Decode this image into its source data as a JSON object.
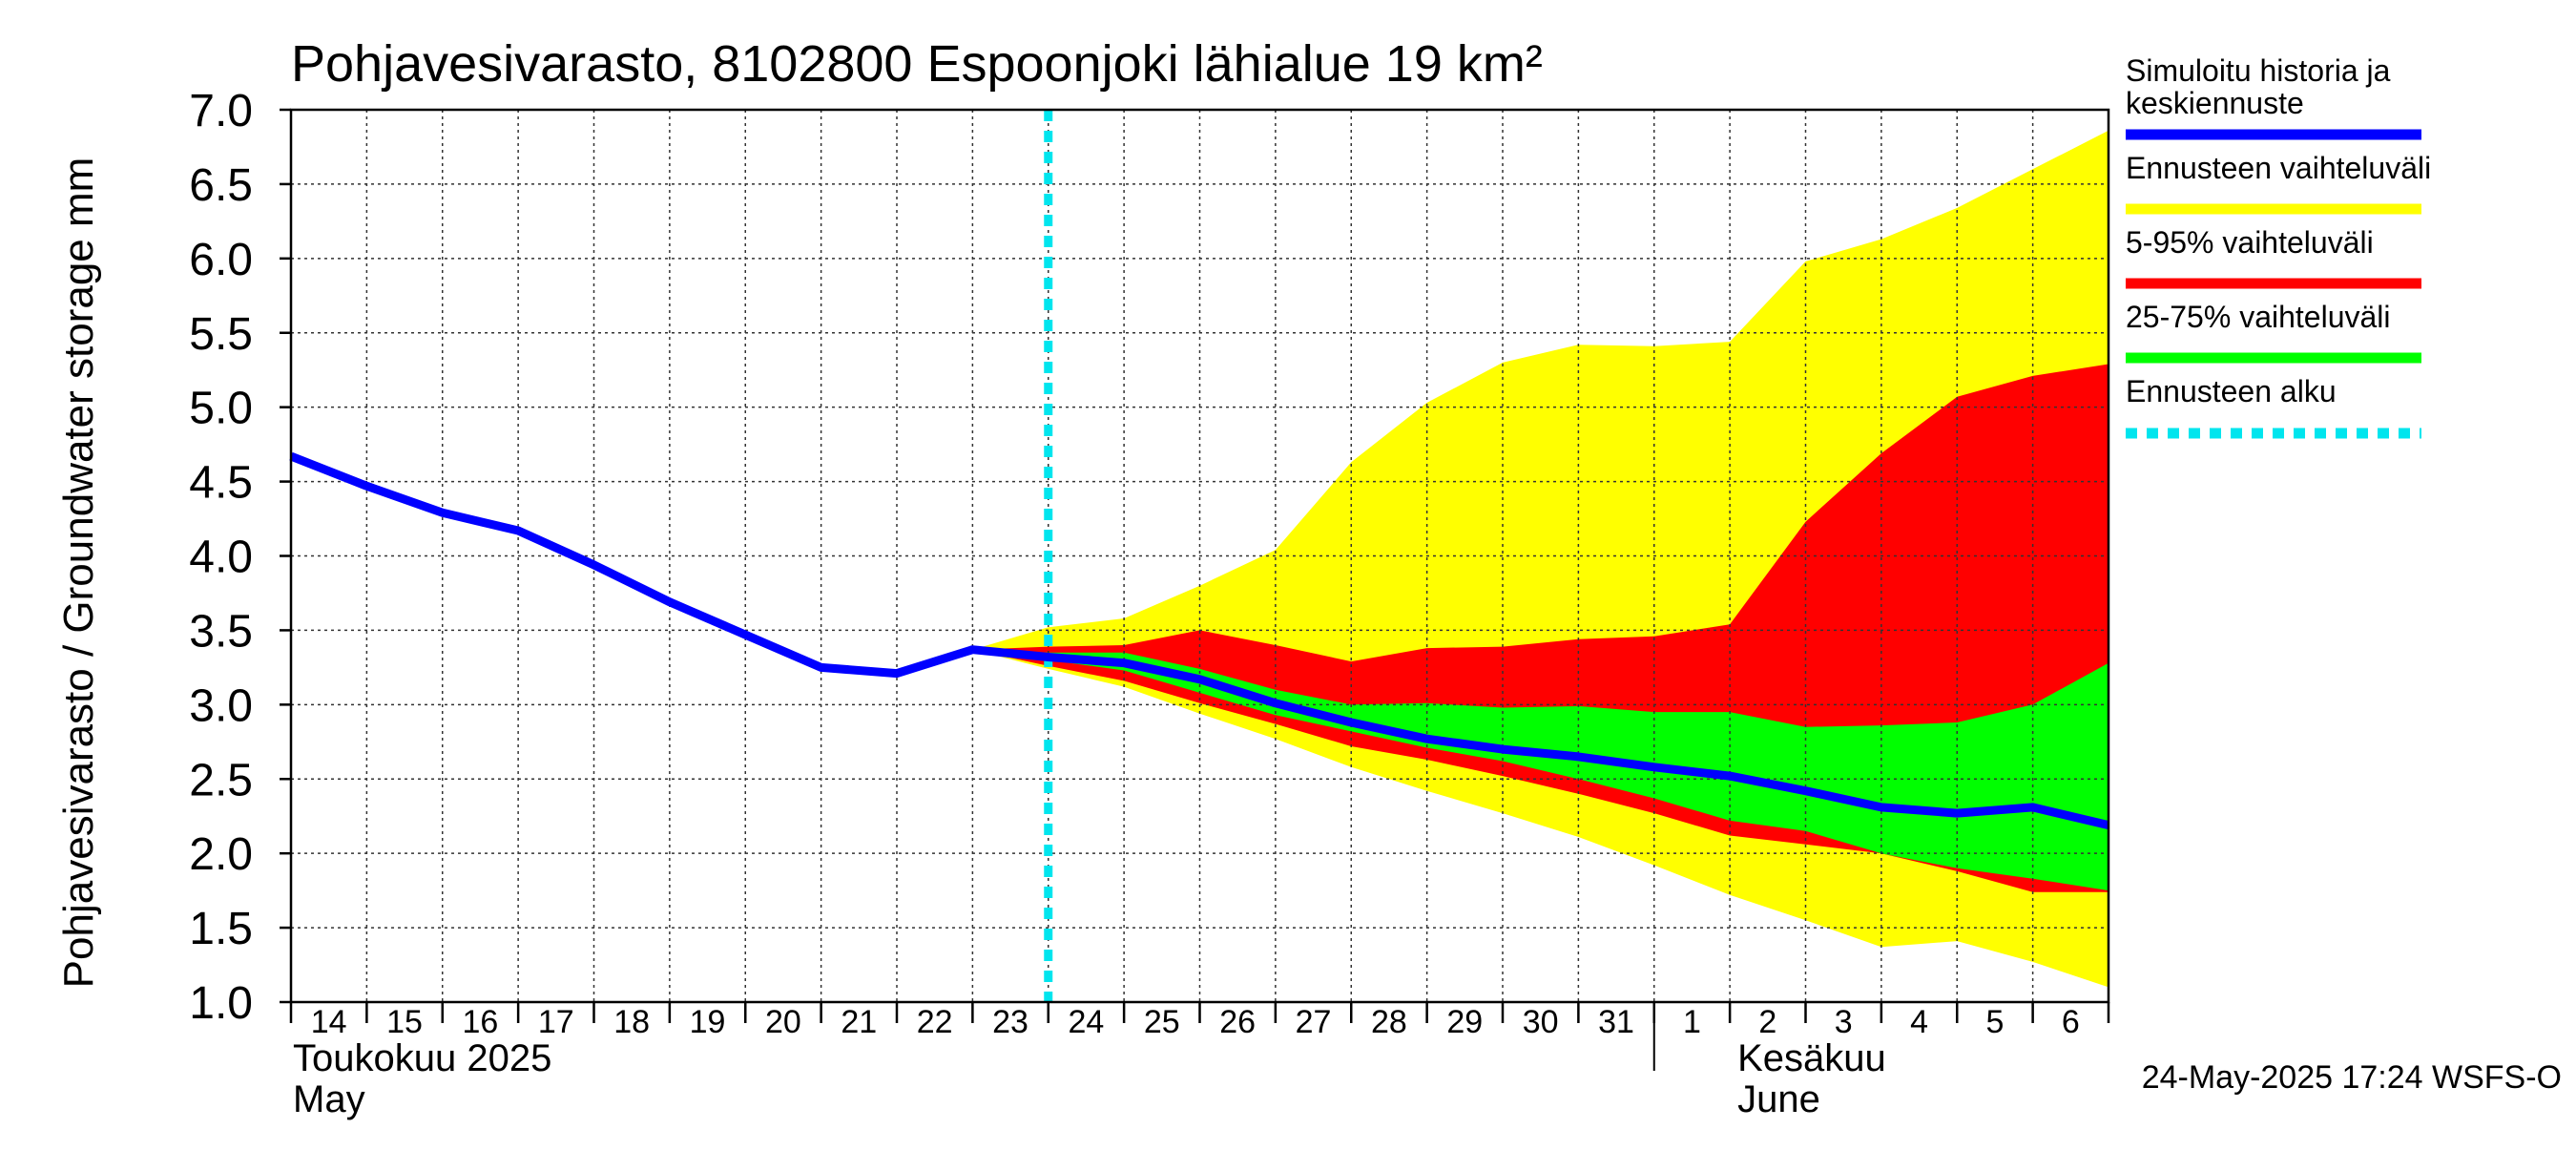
{
  "chart_data": {
    "type": "area",
    "title": "Pohjavesivarasto, 8102800 Espoonjoki lähialue 19 km²",
    "ylabel": "Pohjavesivarasto / Groundwater storage   mm",
    "ylim": [
      1.0,
      7.0
    ],
    "yticks": [
      "1.0",
      "1.5",
      "2.0",
      "2.5",
      "3.0",
      "3.5",
      "4.0",
      "4.5",
      "5.0",
      "5.5",
      "6.0",
      "6.5",
      "7.0"
    ],
    "xlim": [
      0,
      24
    ],
    "x_day_labels": [
      "14",
      "15",
      "16",
      "17",
      "18",
      "19",
      "20",
      "21",
      "22",
      "23",
      "24",
      "25",
      "26",
      "27",
      "28",
      "29",
      "30",
      "31",
      "1",
      "2",
      "3",
      "4",
      "5",
      "6"
    ],
    "month_labels": [
      {
        "line1": "Toukokuu  2025",
        "line2": "May",
        "x": 0
      },
      {
        "line1": "Kesäkuu",
        "line2": "June",
        "x": 19
      }
    ],
    "month_separator_x": 18,
    "grid": true,
    "forecast_start_x": 10,
    "history": {
      "name": "Simuloitu historia ja keskiennuste",
      "color": "#0000ff",
      "x": [
        0,
        1,
        2,
        3,
        4,
        5,
        6,
        7,
        8,
        9,
        10,
        11,
        12,
        13,
        14,
        15,
        16,
        17,
        18,
        19,
        20,
        21,
        22,
        23,
        24
      ],
      "y": [
        4.67,
        4.47,
        4.29,
        4.17,
        3.94,
        3.69,
        3.47,
        3.25,
        3.21,
        3.37,
        3.32,
        3.28,
        3.17,
        3.01,
        2.88,
        2.77,
        2.7,
        2.65,
        2.58,
        2.52,
        2.42,
        2.31,
        2.27,
        2.31,
        2.19
      ]
    },
    "bands": [
      {
        "name": "Ennusteen vaihteluväli",
        "color": "#ffff00",
        "x": [
          9,
          10,
          11,
          12,
          13,
          14,
          15,
          16,
          17,
          18,
          19,
          20,
          21,
          22,
          23,
          24
        ],
        "upper": [
          3.37,
          3.52,
          3.58,
          3.8,
          4.04,
          4.63,
          5.03,
          5.3,
          5.42,
          5.41,
          5.44,
          5.98,
          6.13,
          6.34,
          6.6,
          6.86
        ],
        "lower": [
          3.37,
          3.24,
          3.12,
          2.94,
          2.77,
          2.58,
          2.42,
          2.27,
          2.11,
          1.92,
          1.72,
          1.55,
          1.37,
          1.41,
          1.27,
          1.1
        ]
      },
      {
        "name": "5-95% vaihteluväli",
        "color": "#ff0000",
        "x": [
          9,
          10,
          11,
          12,
          13,
          14,
          15,
          16,
          17,
          18,
          19,
          20,
          21,
          22,
          23,
          24
        ],
        "upper": [
          3.37,
          3.39,
          3.4,
          3.5,
          3.4,
          3.29,
          3.38,
          3.39,
          3.44,
          3.46,
          3.54,
          4.23,
          4.69,
          5.07,
          5.21,
          5.29
        ],
        "lower": [
          3.37,
          3.26,
          3.16,
          3.01,
          2.87,
          2.72,
          2.63,
          2.52,
          2.4,
          2.27,
          2.12,
          2.06,
          2.0,
          1.88,
          1.74,
          1.74
        ]
      },
      {
        "name": "25-75% vaihteluväli",
        "color": "#00ff00",
        "x": [
          9,
          10,
          11,
          12,
          13,
          14,
          15,
          16,
          17,
          18,
          19,
          20,
          21,
          22,
          23,
          24
        ],
        "upper": [
          3.37,
          3.35,
          3.35,
          3.24,
          3.1,
          3.0,
          3.01,
          2.98,
          2.99,
          2.95,
          2.95,
          2.85,
          2.86,
          2.88,
          3.0,
          3.28
        ],
        "lower": [
          3.37,
          3.3,
          3.23,
          3.08,
          2.93,
          2.82,
          2.71,
          2.62,
          2.5,
          2.37,
          2.22,
          2.15,
          2.0,
          1.9,
          1.83,
          1.75
        ]
      }
    ],
    "legend": {
      "placement": "right",
      "items": [
        {
          "label_lines": [
            "Simuloitu historia ja",
            "keskiennuste"
          ],
          "color": "#0000ff",
          "style": "solid"
        },
        {
          "label_lines": [
            "Ennusteen vaihteluväli"
          ],
          "color": "#ffff00",
          "style": "solid"
        },
        {
          "label_lines": [
            "5-95% vaihteluväli"
          ],
          "color": "#ff0000",
          "style": "solid"
        },
        {
          "label_lines": [
            "25-75% vaihteluväli"
          ],
          "color": "#00ff00",
          "style": "solid"
        },
        {
          "label_lines": [
            "Ennusteen alku"
          ],
          "color": "#00e5ee",
          "style": "dashed"
        }
      ]
    },
    "timestamp": "24-May-2025 17:24 WSFS-O"
  }
}
